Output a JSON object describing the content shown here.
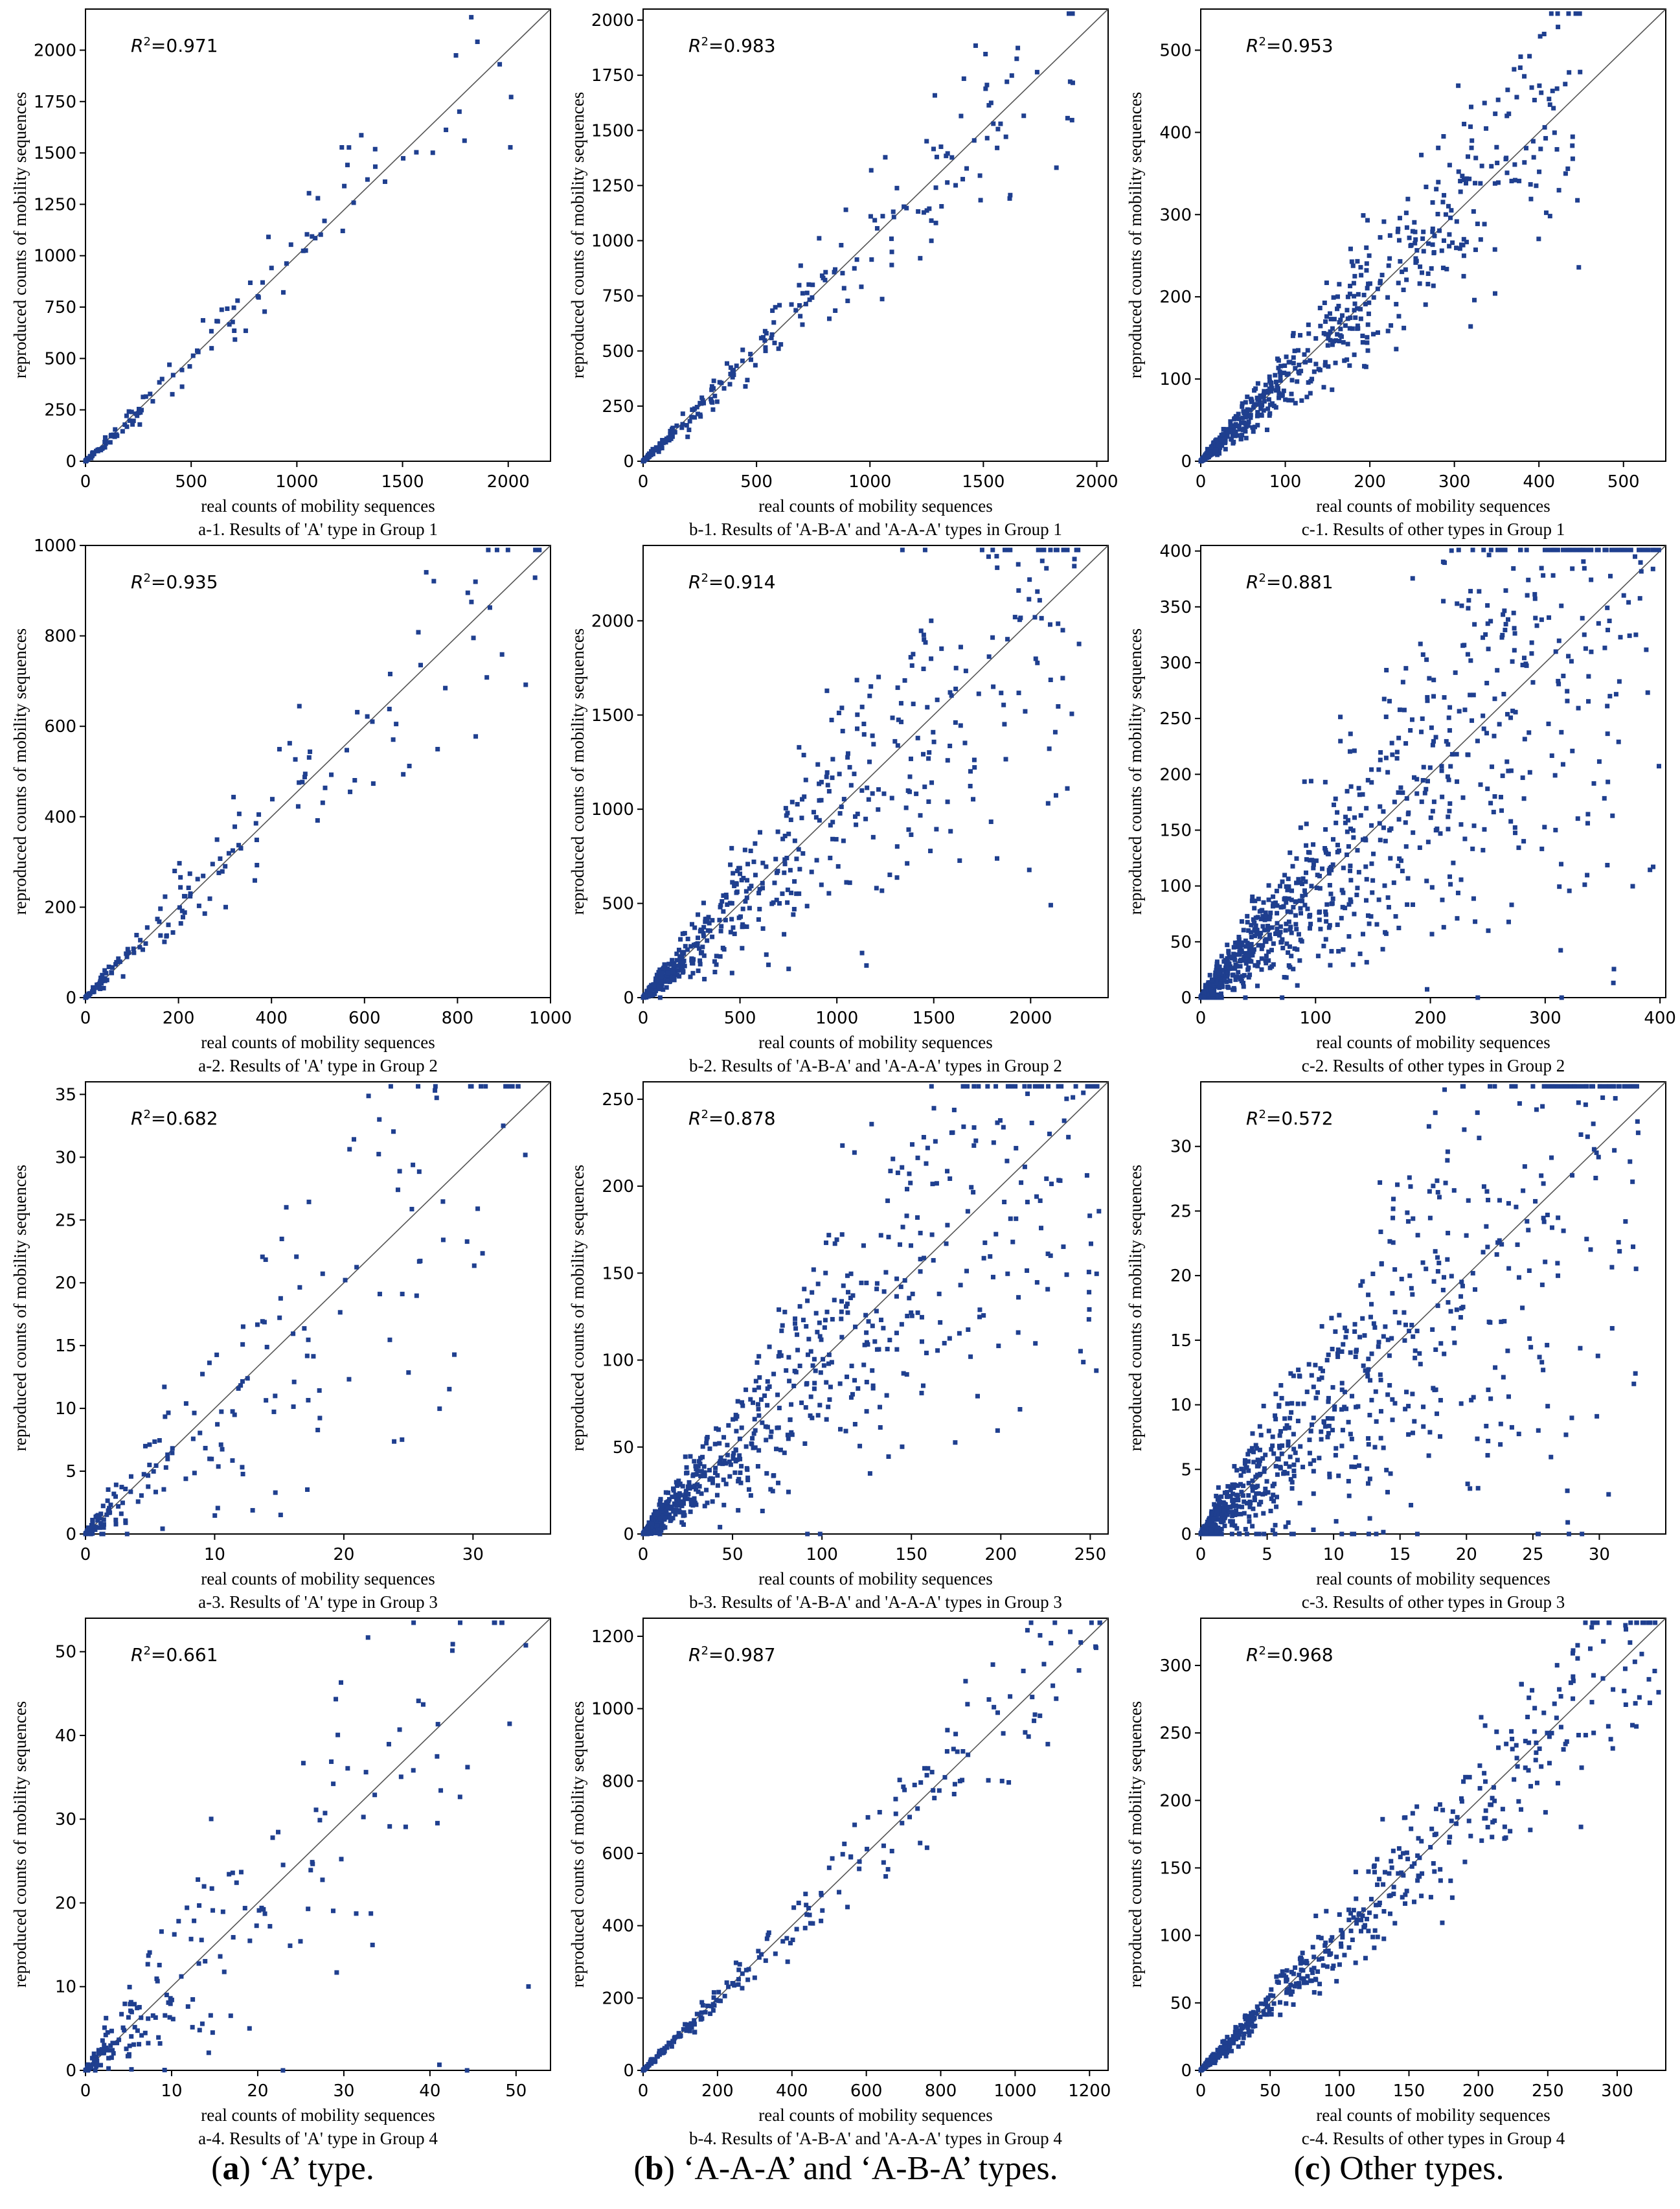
{
  "figure": {
    "captions": [
      {
        "letter": "a",
        "text": " ‘A’ type."
      },
      {
        "letter": "b",
        "text": " ‘A-A-A’ and ‘A-B-A’ types."
      },
      {
        "letter": "c",
        "text": " Other types."
      }
    ],
    "colors": {
      "marker": "#1f3f8f",
      "axis": "#000000",
      "diagonal": "#555555"
    }
  },
  "chart_data": [
    {
      "type": "scatter",
      "id": "a-1",
      "xlabel": "real counts of mobility sequences",
      "ylabel": "reproduced counts of mobility sequences",
      "subtitle": "a-1. Results of 'A' type in Group 1",
      "r2_prefix": "R",
      "r2_sup": "2",
      "r2_value": "=0.971",
      "xlim": [
        0,
        2200
      ],
      "ylim": [
        0,
        2200
      ],
      "xticks": [
        0,
        500,
        1000,
        1500,
        2000
      ],
      "yticks": [
        0,
        250,
        500,
        750,
        1000,
        1250,
        1500,
        1750,
        2000
      ],
      "n_points": 150,
      "spread": 0.12,
      "max_value": 2050,
      "seed": 11
    },
    {
      "type": "scatter",
      "id": "b-1",
      "xlabel": "real counts of mobility sequences",
      "ylabel": "reproduced counts of mobility sequences",
      "subtitle": "b-1. Results of 'A-B-A' and 'A-A-A' types in Group 1",
      "r2_prefix": "R",
      "r2_sup": "2",
      "r2_value": "=0.983",
      "xlim": [
        0,
        2050
      ],
      "ylim": [
        0,
        2050
      ],
      "xticks": [
        0,
        500,
        1000,
        1500,
        2000
      ],
      "yticks": [
        0,
        250,
        500,
        750,
        1000,
        1250,
        1500,
        1750,
        2000
      ],
      "n_points": 260,
      "spread": 0.12,
      "max_value": 1900,
      "seed": 23
    },
    {
      "type": "scatter",
      "id": "c-1",
      "xlabel": "real counts of mobility sequences",
      "ylabel": "reproduced counts of mobility sequences",
      "subtitle": "c-1. Results of other types in Group 1",
      "r2_prefix": "R",
      "r2_sup": "2",
      "r2_value": "=0.953",
      "xlim": [
        0,
        550
      ],
      "ylim": [
        0,
        550
      ],
      "xticks": [
        0,
        100,
        200,
        300,
        400,
        500
      ],
      "yticks": [
        0,
        100,
        200,
        300,
        400,
        500
      ],
      "n_points": 700,
      "spread": 0.2,
      "max_value": 450,
      "seed": 37
    },
    {
      "type": "scatter",
      "id": "a-2",
      "xlabel": "real counts of mobility sequences",
      "ylabel": "reproduced counts of mobility sequences",
      "subtitle": "a-2. Results of 'A' type in Group 2",
      "r2_prefix": "R",
      "r2_sup": "2",
      "r2_value": "=0.935",
      "xlim": [
        0,
        1000
      ],
      "ylim": [
        0,
        1000
      ],
      "xticks": [
        0,
        200,
        400,
        600,
        800,
        1000
      ],
      "yticks": [
        0,
        200,
        400,
        600,
        800,
        1000
      ],
      "n_points": 170,
      "spread": 0.18,
      "max_value": 980,
      "seed": 41
    },
    {
      "type": "scatter",
      "id": "b-2",
      "xlabel": "real counts of mobility sequences",
      "ylabel": "reproduced counts of mobility sequences",
      "subtitle": "b-2. Results of 'A-B-A' and 'A-A-A' types in Group 2",
      "r2_prefix": "R",
      "r2_sup": "2",
      "r2_value": "=0.914",
      "xlim": [
        0,
        2400
      ],
      "ylim": [
        0,
        2400
      ],
      "xticks": [
        0,
        500,
        1000,
        1500,
        2000
      ],
      "yticks": [
        0,
        500,
        1000,
        1500,
        2000
      ],
      "n_points": 600,
      "spread": 0.3,
      "max_value": 2250,
      "seed": 53
    },
    {
      "type": "scatter",
      "id": "c-2",
      "xlabel": "real counts of mobility sequences",
      "ylabel": "reproduced counts of mobility sequences",
      "subtitle": "c-2. Results of other types in Group 2",
      "r2_prefix": "R",
      "r2_sup": "2",
      "r2_value": "=0.881",
      "xlim": [
        0,
        405
      ],
      "ylim": [
        0,
        405
      ],
      "xticks": [
        0,
        100,
        200,
        300,
        400
      ],
      "yticks": [
        0,
        50,
        100,
        150,
        200,
        250,
        300,
        350,
        400
      ],
      "n_points": 1100,
      "spread": 0.4,
      "max_value": 400,
      "seed": 67
    },
    {
      "type": "scatter",
      "id": "a-3",
      "xlabel": "real counts of mobility sequences",
      "ylabel": "reproduced counts of mobility sequences",
      "subtitle": "a-3. Results of 'A' type in Group 3",
      "r2_prefix": "R",
      "r2_sup": "2",
      "r2_value": "=0.682",
      "xlim": [
        0,
        36
      ],
      "ylim": [
        0,
        36
      ],
      "xticks": [
        0,
        10,
        20,
        30
      ],
      "yticks": [
        0,
        5,
        10,
        15,
        20,
        25,
        30,
        35
      ],
      "n_points": 220,
      "spread": 0.45,
      "max_value": 35,
      "seed": 71
    },
    {
      "type": "scatter",
      "id": "b-3",
      "xlabel": "real counts of mobility sequences",
      "ylabel": "reproduced counts of mobility sequences",
      "subtitle": "b-3. Results of 'A-B-A' and 'A-A-A' types in Group 3",
      "r2_prefix": "R",
      "r2_sup": "2",
      "r2_value": "=0.878",
      "xlim": [
        0,
        260
      ],
      "ylim": [
        0,
        260
      ],
      "xticks": [
        0,
        50,
        100,
        150,
        200,
        250
      ],
      "yticks": [
        0,
        50,
        100,
        150,
        200,
        250
      ],
      "n_points": 800,
      "spread": 0.35,
      "max_value": 255,
      "seed": 83
    },
    {
      "type": "scatter",
      "id": "c-3",
      "xlabel": "real counts of mobility sequences",
      "ylabel": "reproduced counts of mobility sequences",
      "subtitle": "c-3. Results of other types in Group 3",
      "r2_prefix": "R",
      "r2_sup": "2",
      "r2_value": "=0.572",
      "xlim": [
        0,
        35
      ],
      "ylim": [
        0,
        35
      ],
      "xticks": [
        0,
        5,
        10,
        15,
        20,
        25,
        30
      ],
      "yticks": [
        0,
        5,
        10,
        15,
        20,
        25,
        30
      ],
      "n_points": 900,
      "spread": 0.5,
      "max_value": 33,
      "seed": 97
    },
    {
      "type": "scatter",
      "id": "a-4",
      "xlabel": "real counts of mobility sequences",
      "ylabel": "reproduced counts of mobility sequences",
      "subtitle": "a-4. Results of 'A' type in Group 4",
      "r2_prefix": "R",
      "r2_sup": "2",
      "r2_value": "=0.661",
      "xlim": [
        0,
        54
      ],
      "ylim": [
        0,
        54
      ],
      "xticks": [
        0,
        10,
        20,
        30,
        40,
        50
      ],
      "yticks": [
        0,
        10,
        20,
        30,
        40,
        50
      ],
      "n_points": 220,
      "spread": 0.45,
      "max_value": 52,
      "seed": 101
    },
    {
      "type": "scatter",
      "id": "b-4",
      "xlabel": "real counts of mobility sequences",
      "ylabel": "reproduced counts of mobility sequences",
      "subtitle": "b-4. Results of 'A-B-A' and 'A-A-A' types in Group 4",
      "r2_prefix": "R",
      "r2_sup": "2",
      "r2_value": "=0.987",
      "xlim": [
        0,
        1250
      ],
      "ylim": [
        0,
        1250
      ],
      "xticks": [
        0,
        200,
        400,
        600,
        800,
        1000,
        1200
      ],
      "yticks": [
        0,
        200,
        400,
        600,
        800,
        1000,
        1200
      ],
      "n_points": 260,
      "spread": 0.1,
      "max_value": 1230,
      "seed": 113
    },
    {
      "type": "scatter",
      "id": "c-4",
      "xlabel": "real counts of mobility sequences",
      "ylabel": "reproduced counts of mobility sequences",
      "subtitle": "c-4. Results of other types in Group 4",
      "r2_prefix": "R",
      "r2_sup": "2",
      "r2_value": "=0.968",
      "xlim": [
        0,
        335
      ],
      "ylim": [
        0,
        335
      ],
      "xticks": [
        0,
        50,
        100,
        150,
        200,
        250,
        300
      ],
      "yticks": [
        0,
        50,
        100,
        150,
        200,
        250,
        300
      ],
      "n_points": 600,
      "spread": 0.14,
      "max_value": 330,
      "seed": 127
    }
  ]
}
